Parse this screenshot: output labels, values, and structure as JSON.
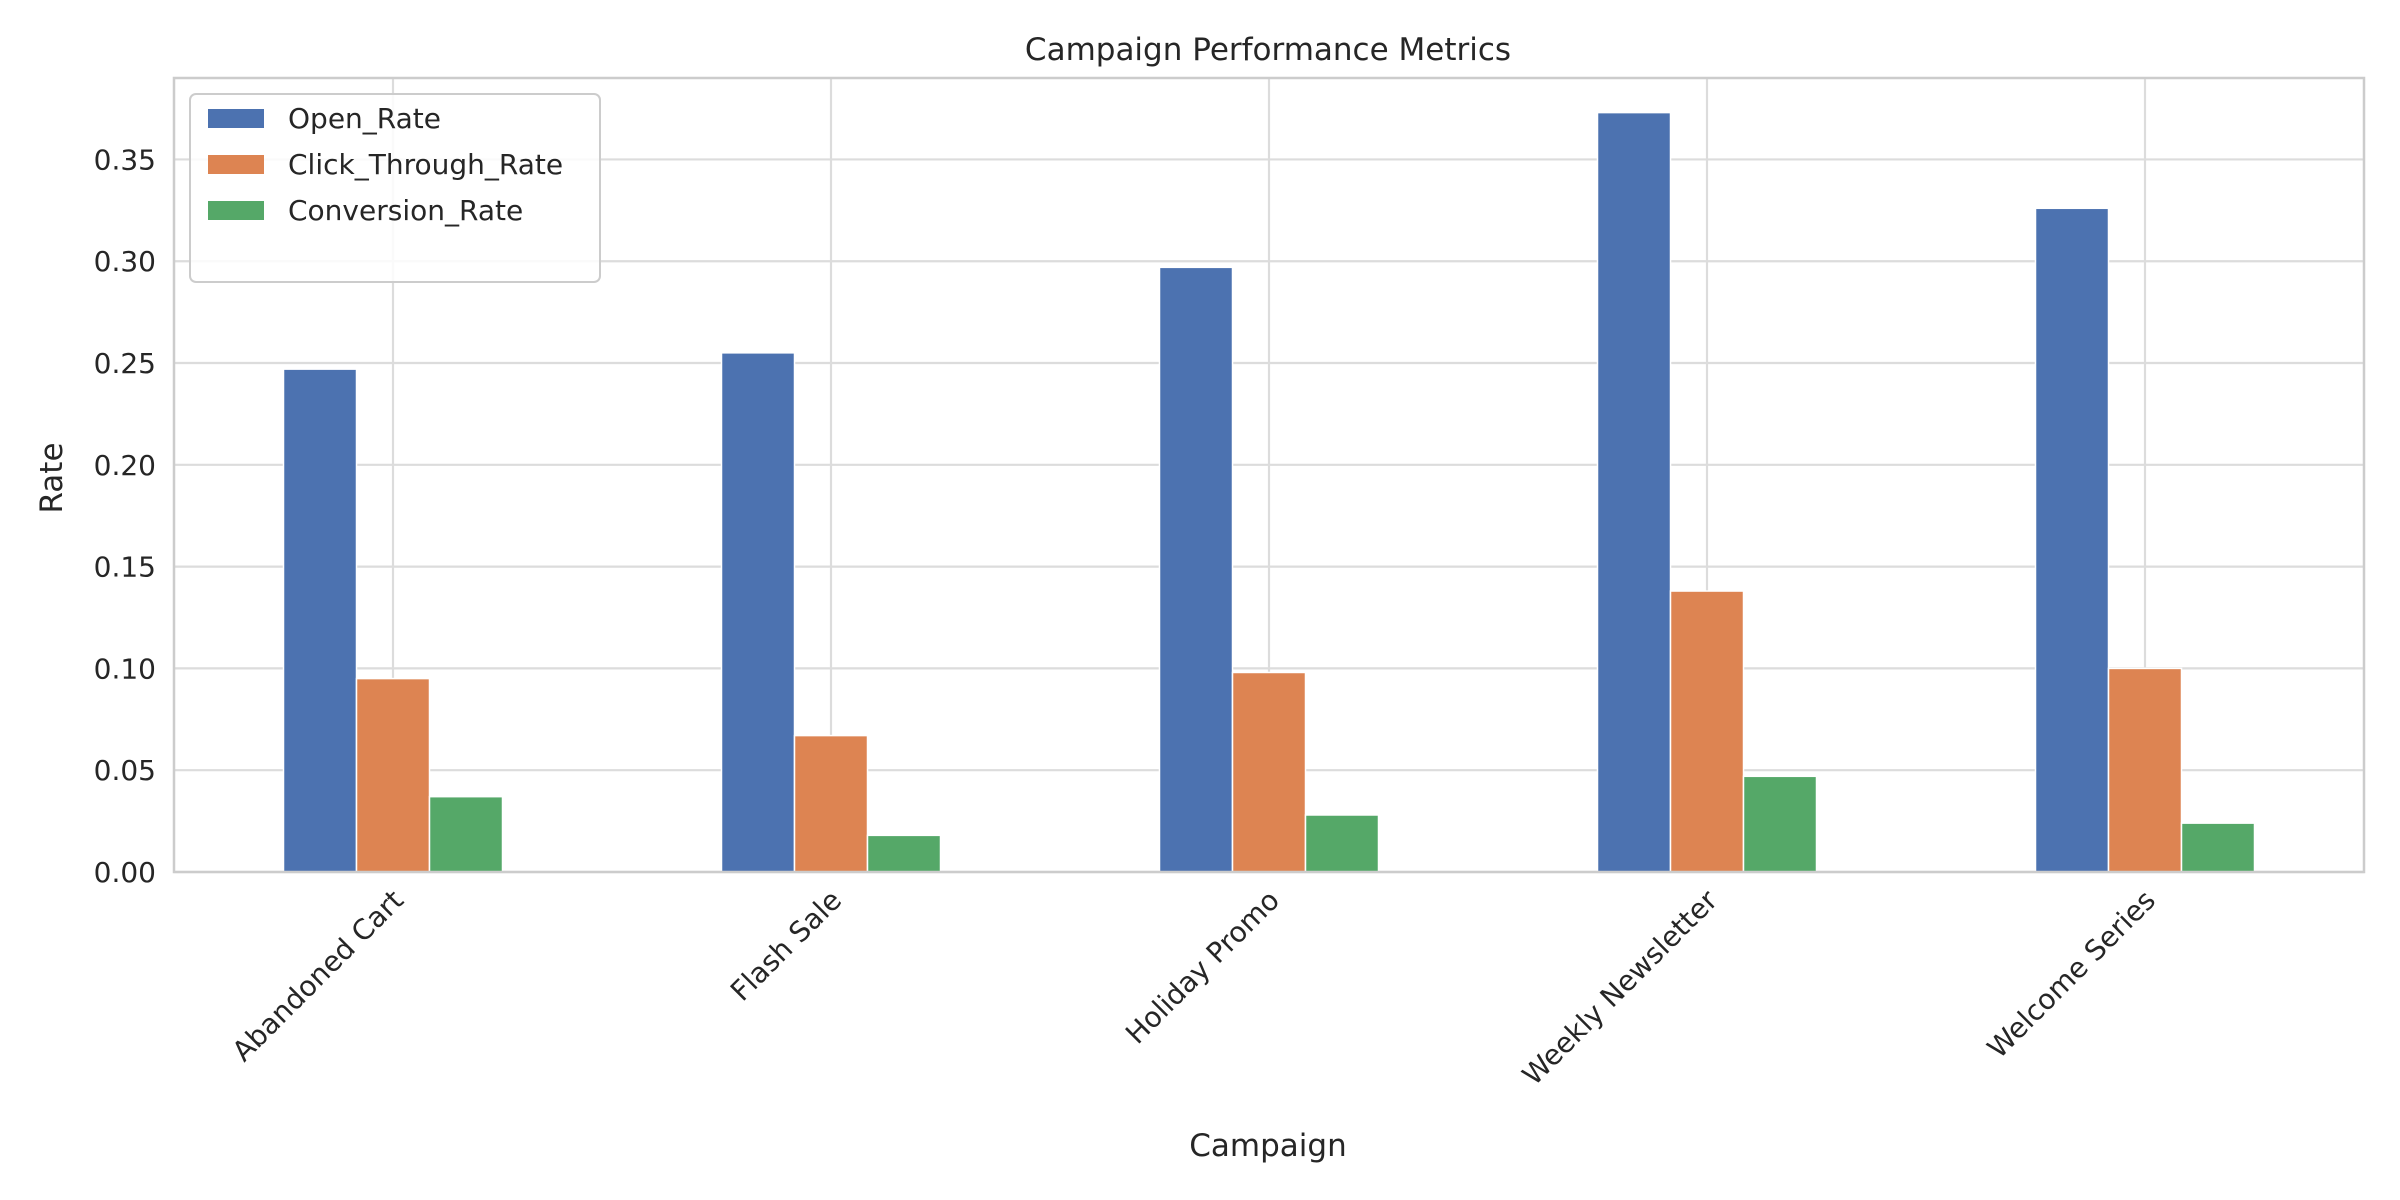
{
  "chart_data": {
    "type": "bar",
    "title": "Campaign Performance Metrics",
    "xlabel": "Campaign",
    "ylabel": "Rate",
    "categories": [
      "Abandoned Cart",
      "Flash Sale",
      "Holiday Promo",
      "Weekly Newsletter",
      "Welcome Series"
    ],
    "series": [
      {
        "name": "Open_Rate",
        "color": "#4c72b0",
        "values": [
          0.247,
          0.255,
          0.297,
          0.373,
          0.326
        ]
      },
      {
        "name": "Click_Through_Rate",
        "color": "#dd8452",
        "values": [
          0.095,
          0.067,
          0.098,
          0.138,
          0.1
        ]
      },
      {
        "name": "Conversion_Rate",
        "color": "#55a868",
        "values": [
          0.037,
          0.018,
          0.028,
          0.047,
          0.024
        ]
      }
    ],
    "ylim": [
      0,
      0.39
    ],
    "yticks": [
      "0.00",
      "0.05",
      "0.10",
      "0.15",
      "0.20",
      "0.25",
      "0.30",
      "0.35"
    ],
    "grid": true,
    "legend_position": "top-left"
  }
}
